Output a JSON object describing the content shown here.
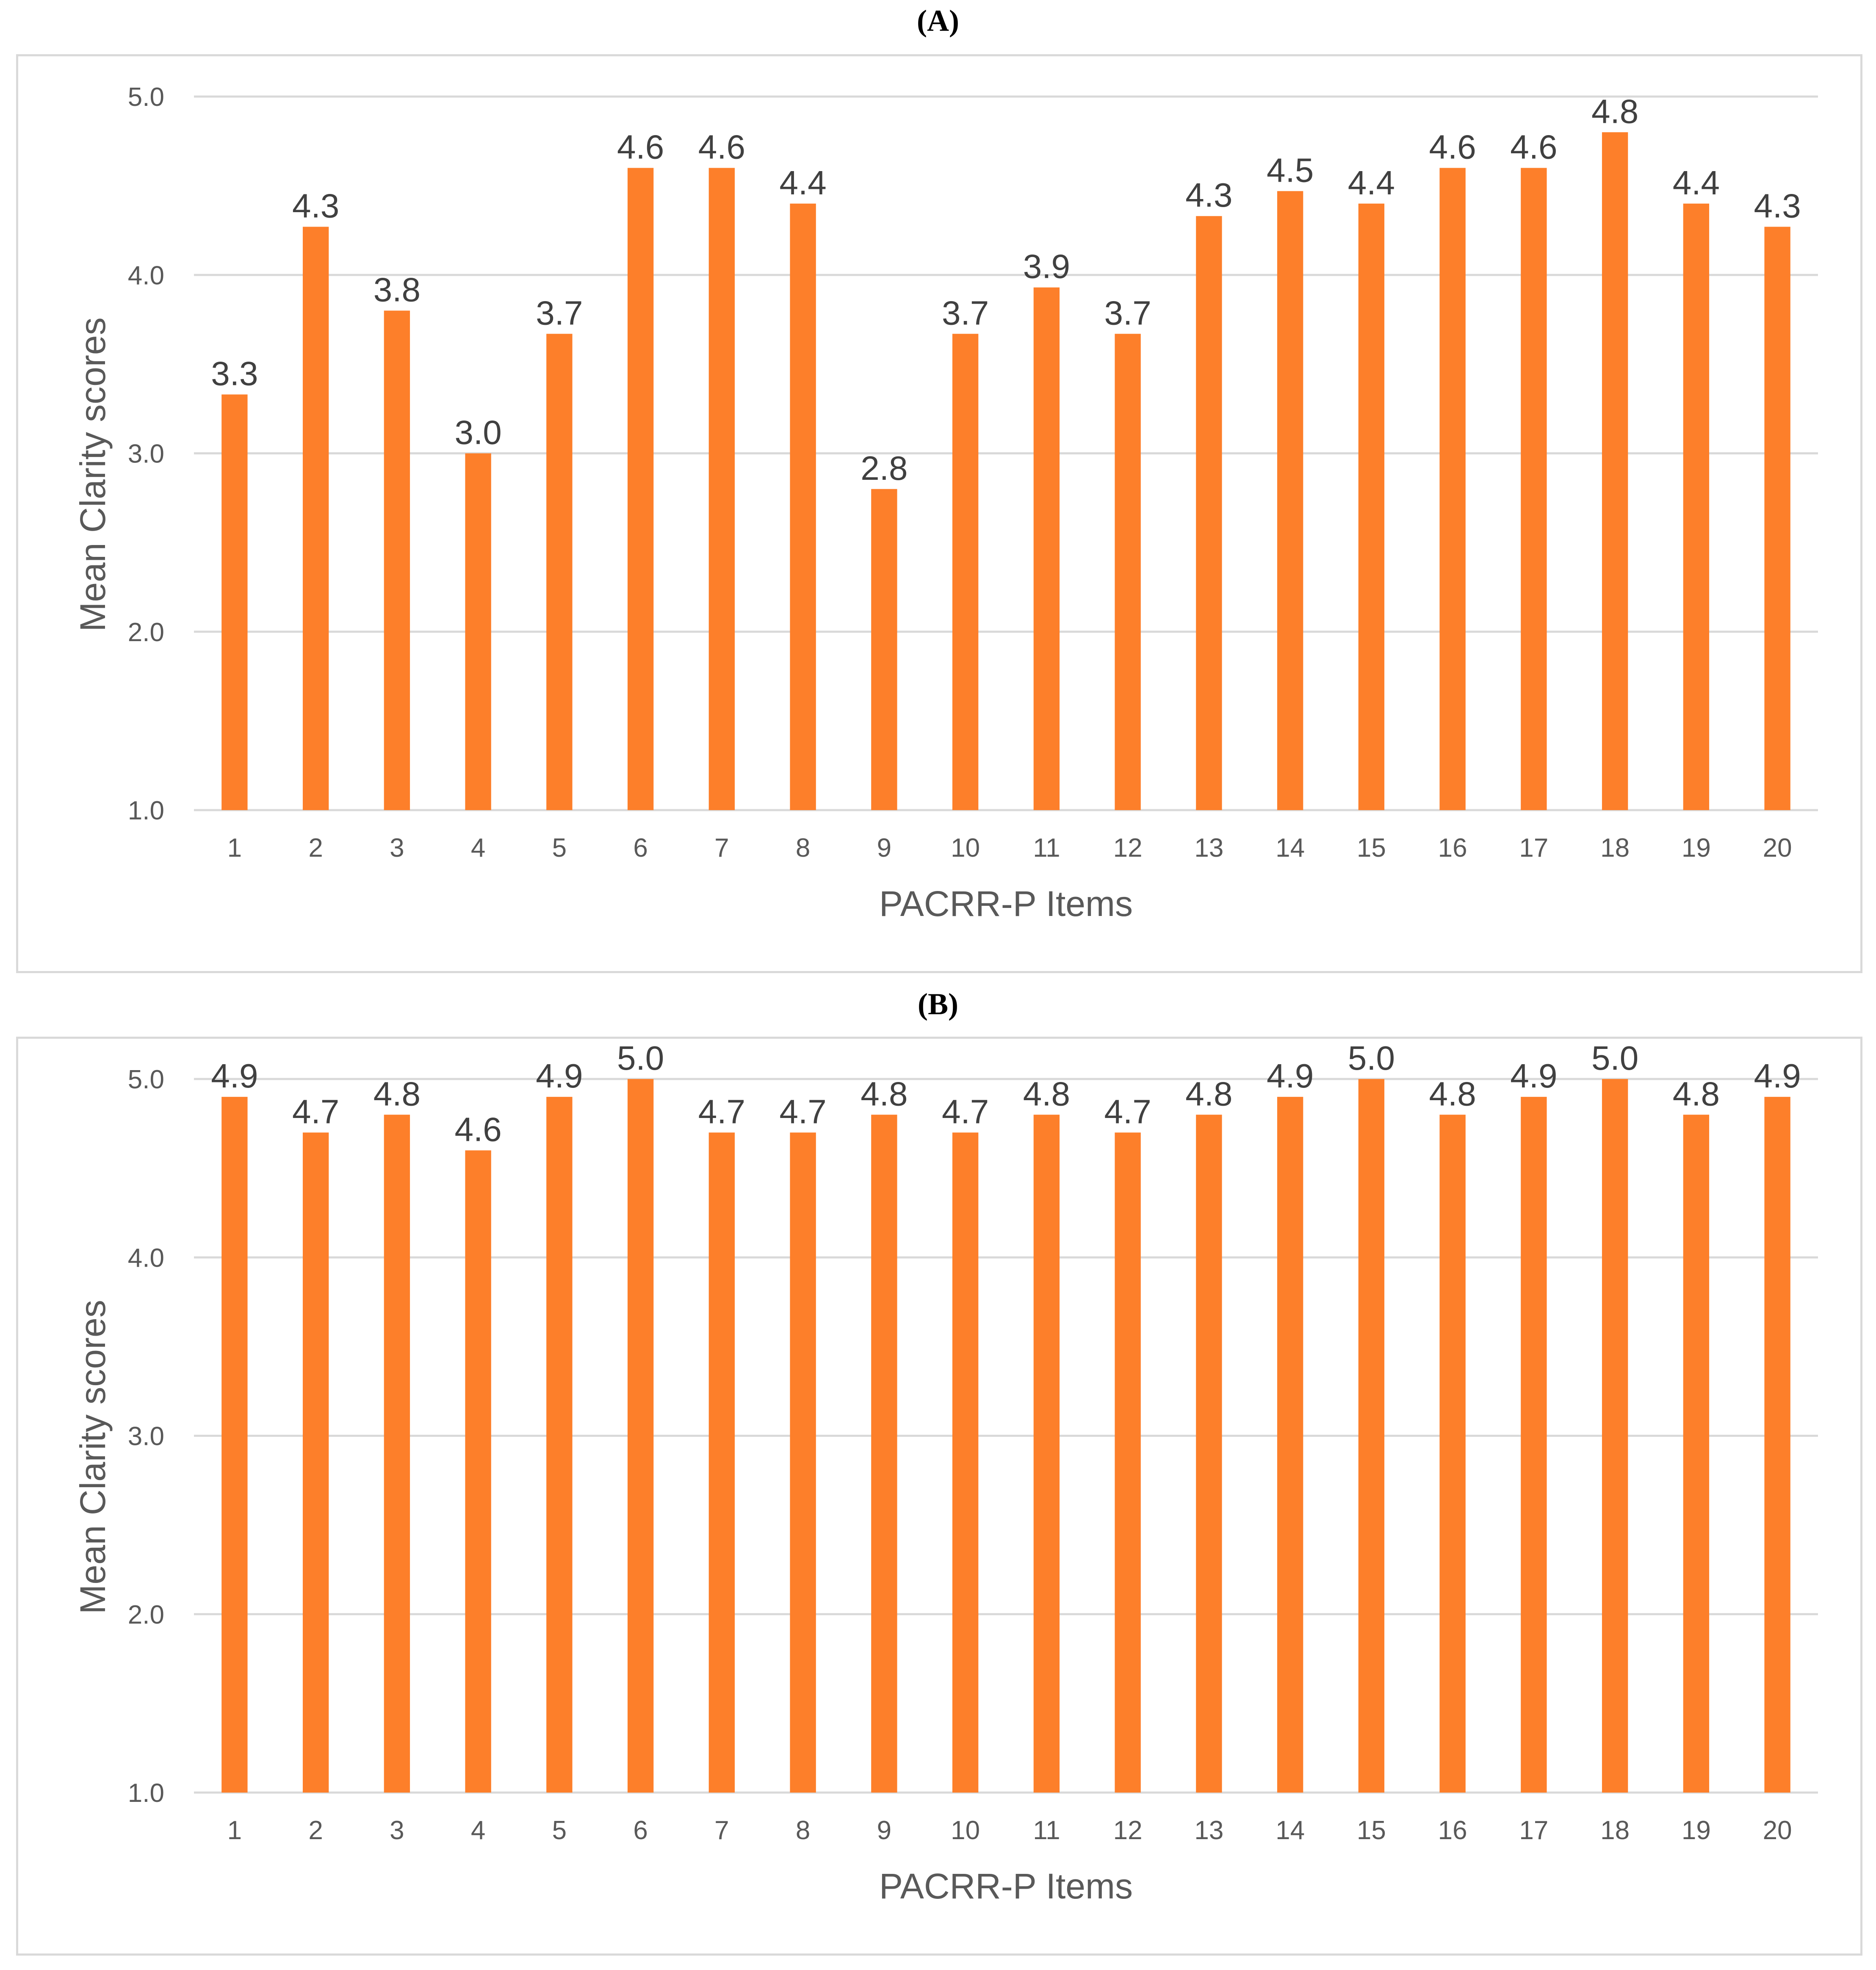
{
  "panels": [
    {
      "label": "(A)",
      "chart_data": {
        "type": "bar",
        "categories": [
          "1",
          "2",
          "3",
          "4",
          "5",
          "6",
          "7",
          "8",
          "9",
          "10",
          "11",
          "12",
          "13",
          "14",
          "15",
          "16",
          "17",
          "18",
          "19",
          "20"
        ],
        "values": [
          3.33,
          4.27,
          3.8,
          3.0,
          3.67,
          4.6,
          4.6,
          4.4,
          2.8,
          3.67,
          3.93,
          3.67,
          4.33,
          4.47,
          4.4,
          4.6,
          4.6,
          4.8,
          4.4,
          4.27
        ],
        "data_labels": [
          "3.3",
          "4.3",
          "3.8",
          "3.0",
          "3.7",
          "4.6",
          "4.6",
          "4.4",
          "2.8",
          "3.7",
          "3.9",
          "3.7",
          "4.3",
          "4.5",
          "4.4",
          "4.6",
          "4.6",
          "4.8",
          "4.4",
          "4.3"
        ],
        "yticks": [
          "1.0",
          "2.0",
          "3.0",
          "4.0",
          "5.0"
        ],
        "ylim": [
          1.0,
          5.0
        ],
        "xlabel": "PACRR-P Items",
        "ylabel": "Mean Clarity scores",
        "bar_color": "#fd7f2a",
        "grid": true
      }
    },
    {
      "label": "(B)",
      "chart_data": {
        "type": "bar",
        "categories": [
          "1",
          "2",
          "3",
          "4",
          "5",
          "6",
          "7",
          "8",
          "9",
          "10",
          "11",
          "12",
          "13",
          "14",
          "15",
          "16",
          "17",
          "18",
          "19",
          "20"
        ],
        "values": [
          4.9,
          4.7,
          4.8,
          4.6,
          4.9,
          5.0,
          4.7,
          4.7,
          4.8,
          4.7,
          4.8,
          4.7,
          4.8,
          4.9,
          5.0,
          4.8,
          4.9,
          5.0,
          4.8,
          4.9
        ],
        "data_labels": [
          "4.9",
          "4.7",
          "4.8",
          "4.6",
          "4.9",
          "5.0",
          "4.7",
          "4.7",
          "4.8",
          "4.7",
          "4.8",
          "4.7",
          "4.8",
          "4.9",
          "5.0",
          "4.8",
          "4.9",
          "5.0",
          "4.8",
          "4.9"
        ],
        "yticks": [
          "1.0",
          "2.0",
          "3.0",
          "4.0",
          "5.0"
        ],
        "ylim": [
          1.0,
          5.0
        ],
        "xlabel": "PACRR-P Items",
        "ylabel": "Mean Clarity scores",
        "bar_color": "#fd7f2a",
        "grid": true
      }
    }
  ]
}
